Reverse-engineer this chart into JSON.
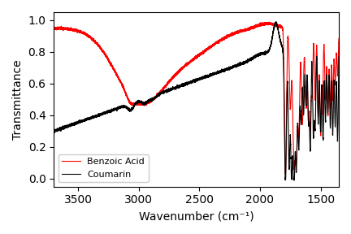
{
  "title": "",
  "xlabel": "Wavenumber (cm⁻¹)",
  "ylabel": "Transmittance",
  "xlim": [
    3700,
    1350
  ],
  "ylim": [
    -0.05,
    1.05
  ],
  "xticks": [
    3500,
    3000,
    2500,
    2000,
    1500
  ],
  "yticks": [
    0.0,
    0.2,
    0.4,
    0.6,
    0.8,
    1.0
  ],
  "legend_labels": [
    "Benzoic Acid",
    "Coumarin"
  ],
  "line_colors": [
    "red",
    "black"
  ],
  "figsize": [
    4.32,
    2.88
  ],
  "dpi": 100
}
